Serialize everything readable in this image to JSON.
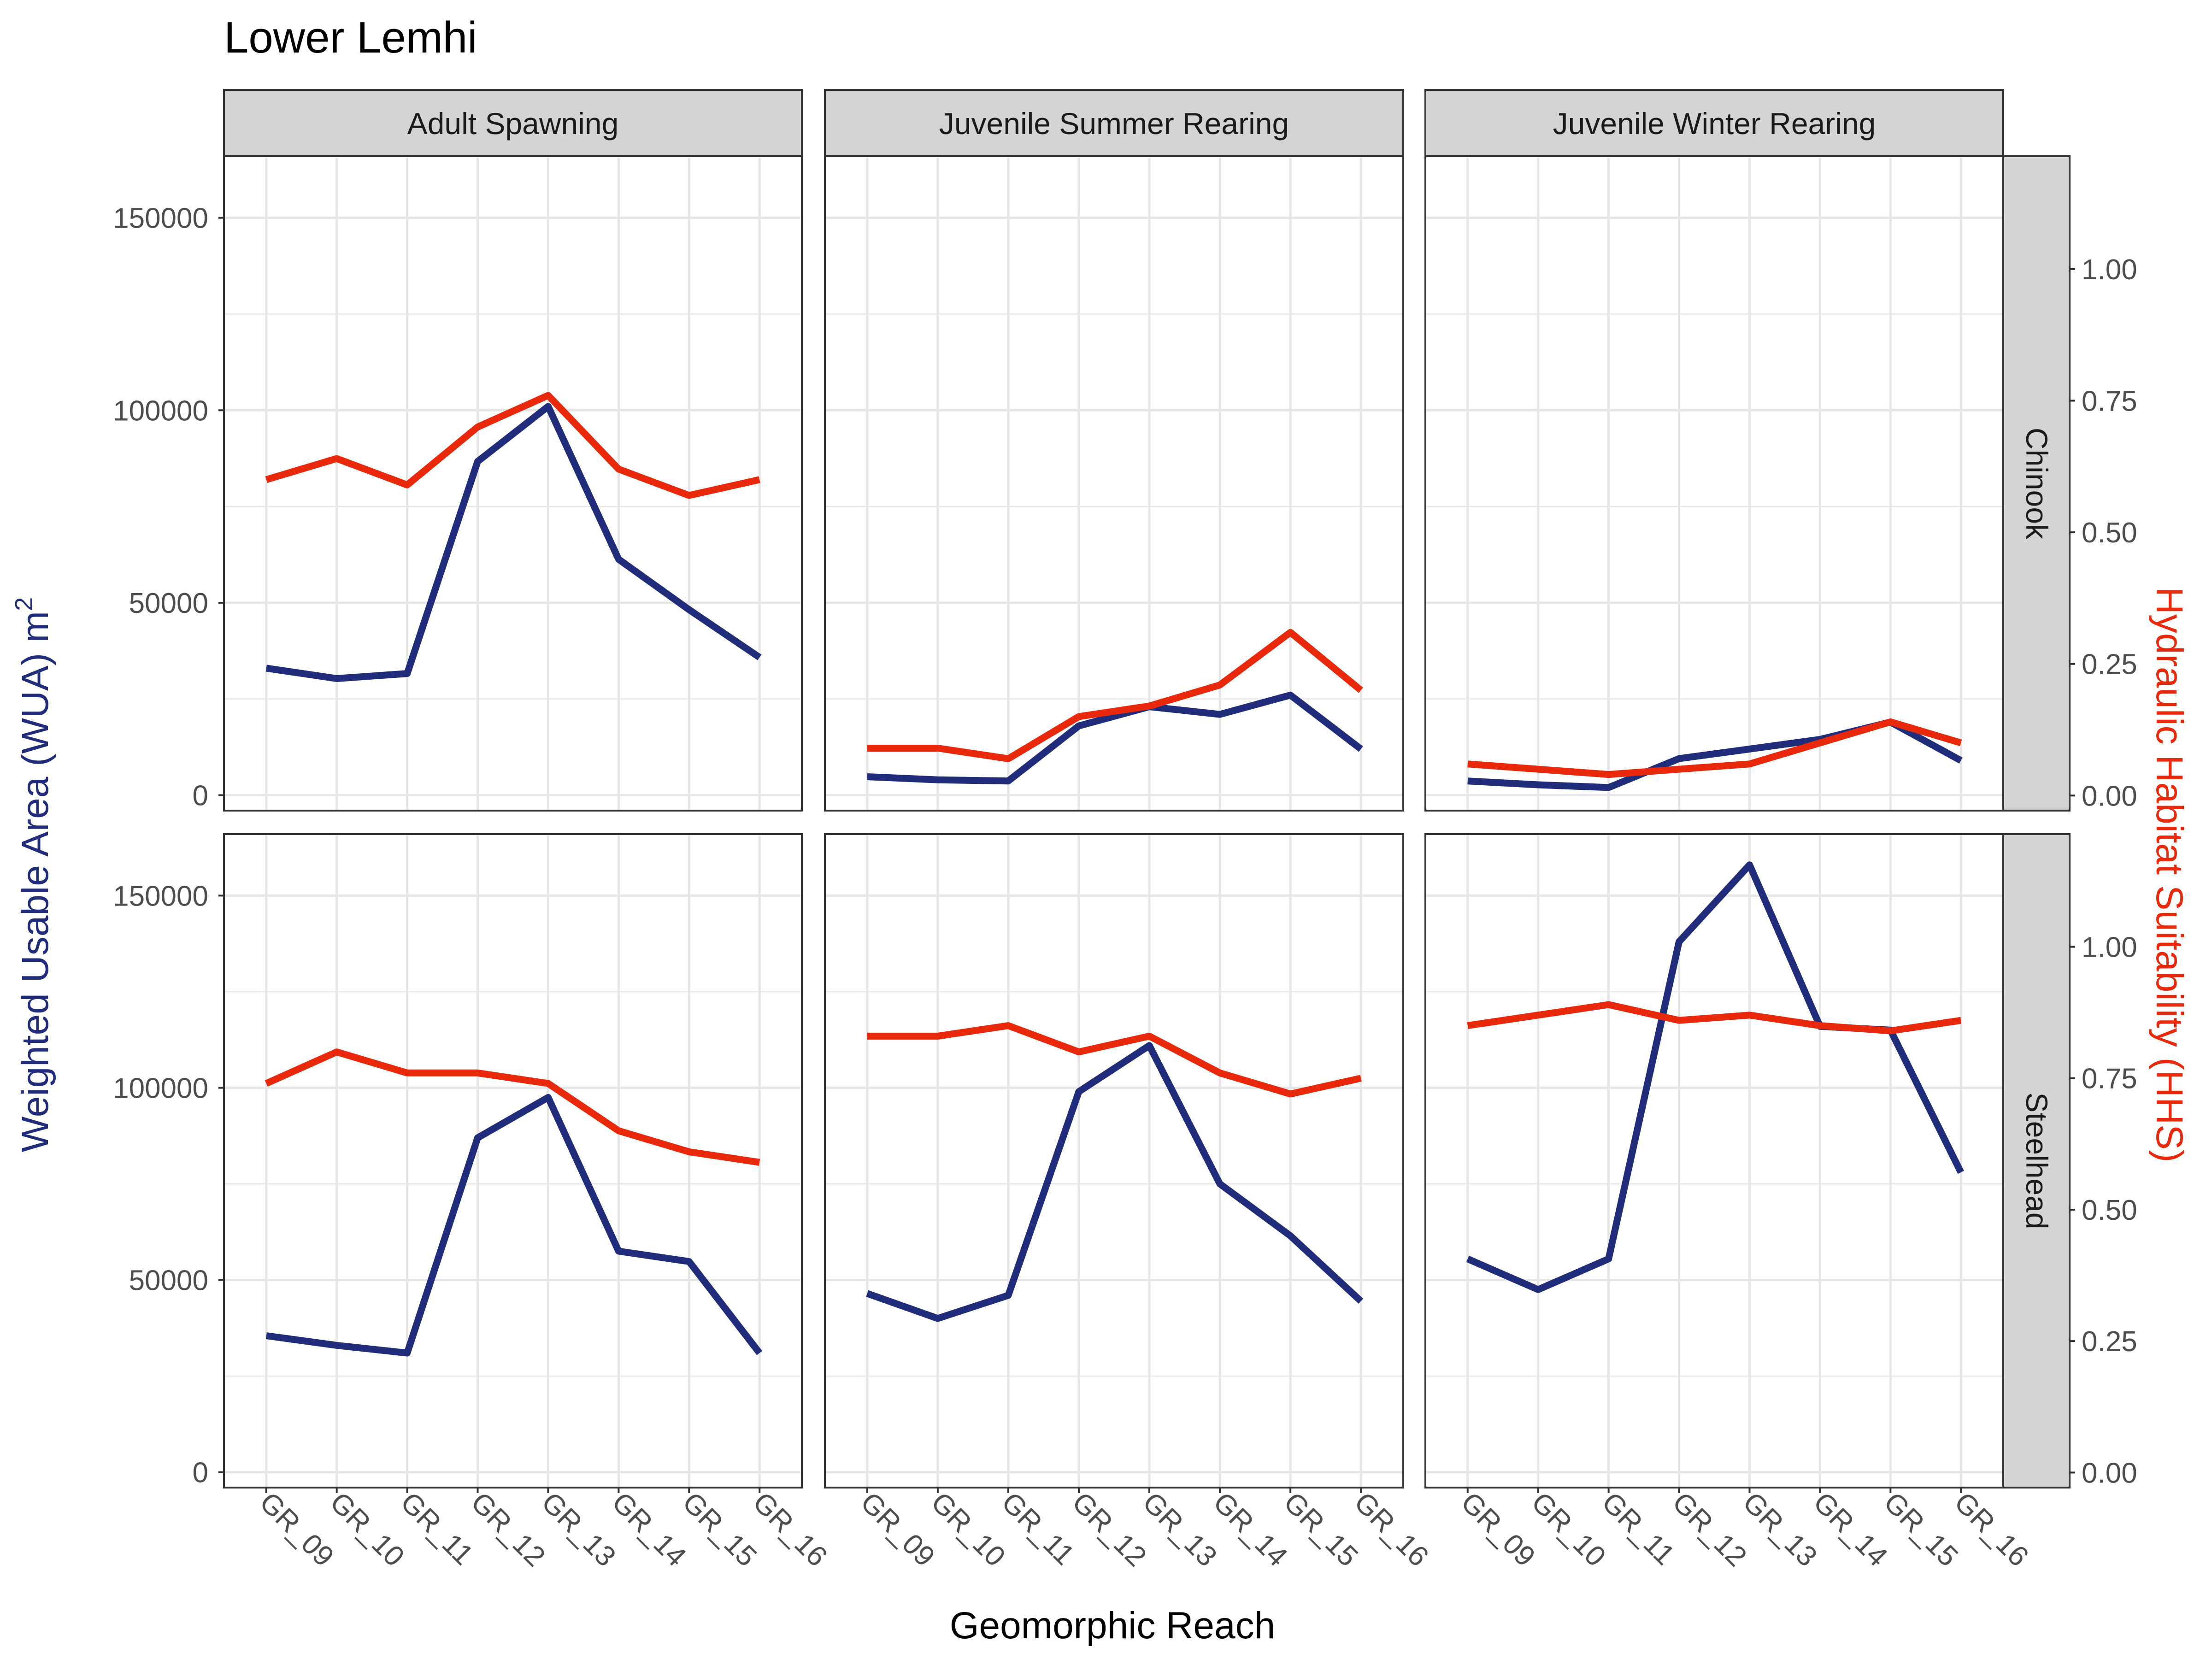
{
  "title": "Lower Lemhi",
  "colors": {
    "wua": "#1f2d7a",
    "hhs": "#e8290b",
    "strip_fill": "#d4d4d4",
    "grid": "#e6e6e6",
    "tick_text": "#4d4d4d",
    "left_axis_title": "#1f2d7a",
    "right_axis_title": "#e8290b"
  },
  "axes": {
    "xlabel": "Geomorphic Reach",
    "ylabel_left_main": "Weighted Usable Area (WUA) m",
    "ylabel_left_sup": "2",
    "ylabel_right": "Hydraulic Habitat Suitability (HHS)",
    "left_ticks": [
      "0",
      "50000",
      "100000",
      "150000"
    ],
    "right_ticks": [
      "0.00",
      "0.25",
      "0.50",
      "0.75",
      "1.00"
    ]
  },
  "chart_data": {
    "type": "line",
    "title": "Lower Lemhi",
    "xlabel": "Geomorphic Reach",
    "ylabel_left": "Weighted Usable Area (WUA) m2",
    "ylabel_right": "Hydraulic Habitat Suitability (HHS)",
    "ylim_left": [
      -4000,
      166000
    ],
    "ylim_right": [
      -0.0286,
      1.2143
    ],
    "grid": true,
    "categories": [
      "GR_09",
      "GR_10",
      "GR_11",
      "GR_12",
      "GR_13",
      "GR_14",
      "GR_15",
      "GR_16"
    ],
    "columns": [
      "Adult Spawning",
      "Juvenile Summer Rearing",
      "Juvenile Winter Rearing"
    ],
    "rows": [
      "Chinook",
      "Steelhead"
    ],
    "panels": [
      {
        "column": "Adult Spawning",
        "row": "Chinook",
        "wua": [
          33000,
          30300,
          31600,
          86700,
          101000,
          61300,
          48200,
          35800
        ],
        "hhs": [
          0.6,
          0.64,
          0.59,
          0.7,
          0.76,
          0.62,
          0.57,
          0.6
        ]
      },
      {
        "column": "Juvenile Summer Rearing",
        "row": "Chinook",
        "wua": [
          4800,
          4000,
          3700,
          18000,
          23000,
          21000,
          26000,
          12000
        ],
        "hhs": [
          0.09,
          0.09,
          0.07,
          0.15,
          0.17,
          0.21,
          0.31,
          0.2
        ]
      },
      {
        "column": "Juvenile Winter Rearing",
        "row": "Chinook",
        "wua": [
          3700,
          2700,
          2000,
          9500,
          12000,
          14500,
          19000,
          9000
        ],
        "hhs": [
          0.06,
          0.05,
          0.04,
          0.05,
          0.06,
          0.1,
          0.14,
          0.1
        ]
      },
      {
        "column": "Adult Spawning",
        "row": "Steelhead",
        "wua": [
          35500,
          33000,
          31000,
          87000,
          97500,
          57500,
          54800,
          31000
        ],
        "hhs": [
          0.74,
          0.8,
          0.76,
          0.76,
          0.74,
          0.65,
          0.61,
          0.59
        ]
      },
      {
        "column": "Juvenile Summer Rearing",
        "row": "Steelhead",
        "wua": [
          46500,
          40000,
          46000,
          99000,
          111000,
          75000,
          61500,
          44500
        ],
        "hhs": [
          0.83,
          0.83,
          0.85,
          0.8,
          0.83,
          0.76,
          0.72,
          0.75
        ]
      },
      {
        "column": "Juvenile Winter Rearing",
        "row": "Steelhead",
        "wua": [
          55500,
          47500,
          55500,
          138000,
          158000,
          116000,
          115000,
          78000
        ],
        "hhs": [
          0.85,
          0.87,
          0.89,
          0.86,
          0.87,
          0.85,
          0.84,
          0.86
        ]
      }
    ]
  }
}
